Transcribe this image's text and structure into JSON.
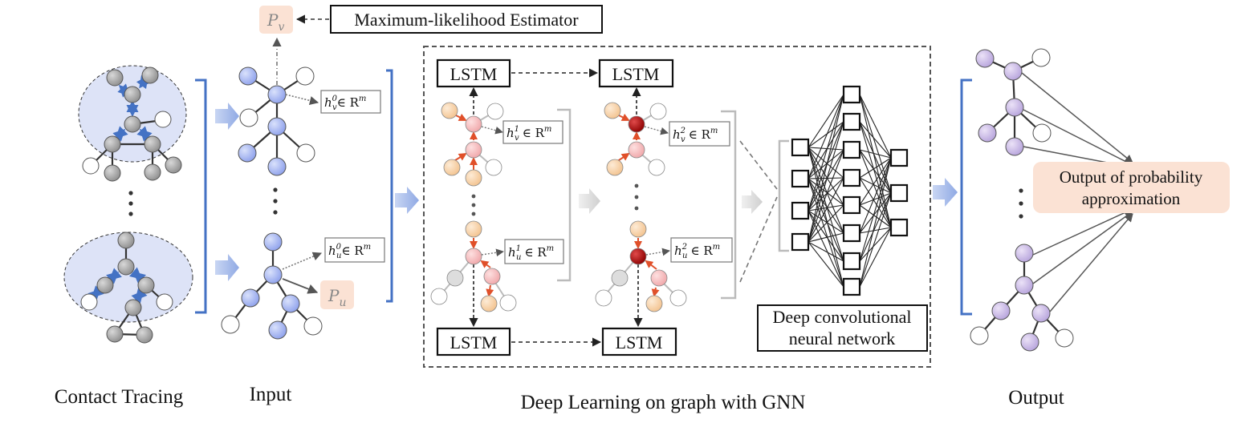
{
  "labels": {
    "contact_tracing": "Contact Tracing",
    "input": "Input",
    "deep_learning": "Deep Learning on graph with GNN",
    "output": "Output",
    "mle": "Maximum-likelihood Estimator",
    "lstm": "LSTM",
    "dcnn_line1": "Deep convolutional",
    "dcnn_line2": "neural network",
    "prob_line1": "Output of probability",
    "prob_line2": "approximation"
  },
  "math": {
    "pv": "P",
    "pv_sub": "v",
    "pu": "P",
    "pu_sub": "u",
    "hv0": "h",
    "hv0_sup": "0",
    "hv0_sub": "v",
    "hu0_sup": "0",
    "hu0_sub": "u",
    "hv1_sup": "1",
    "hv1_sub": "v",
    "hu1_sup": "1",
    "hu1_sub": "u",
    "hv2_sup": "2",
    "hv2_sub": "v",
    "hu2_sup": "2",
    "hu2_sub": "u",
    "in_rm": "∈ R",
    "rm_sup": "m"
  },
  "colors": {
    "bracket_blue": "#4472c4",
    "node_blue": "#a9b8f2",
    "node_gray": "#a5a5a5",
    "node_purple": "#c9b9e6",
    "node_orange": "#f8d4ac",
    "node_pink": "#f5c0c2",
    "node_dark_red": "#b50e0e",
    "cluster_fill": "#dde3f7",
    "output_box_fill": "#fbe2d4",
    "arrow_red": "#e0502a",
    "arrow_blue": "#4472c4"
  }
}
